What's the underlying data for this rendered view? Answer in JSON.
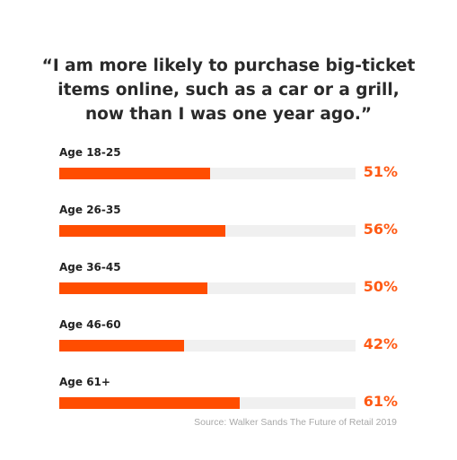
{
  "chart_data": {
    "type": "bar",
    "orientation": "horizontal",
    "title_lines": [
      "“I am more likely to purchase big-ticket",
      "items online, such as a car or a grill,",
      "now than I was one year ago.”"
    ],
    "categories": [
      "Age 18-25",
      "Age 26-35",
      "Age 36-45",
      "Age 46-60",
      "Age 61+"
    ],
    "values": [
      51,
      56,
      50,
      42,
      61
    ],
    "value_labels": [
      "51%",
      "56%",
      "50%",
      "42%",
      "61%"
    ],
    "xlim": [
      0,
      100
    ],
    "unit": "%",
    "grid": false,
    "legend": "none",
    "source": "Source: Walker Sands The Future of Retail 2019"
  },
  "colors": {
    "bar": "#ff4d00",
    "track": "#f0f0f0",
    "value_label": "#ff5a14",
    "title": "#2a2a2a",
    "source": "#a8a8a8"
  }
}
